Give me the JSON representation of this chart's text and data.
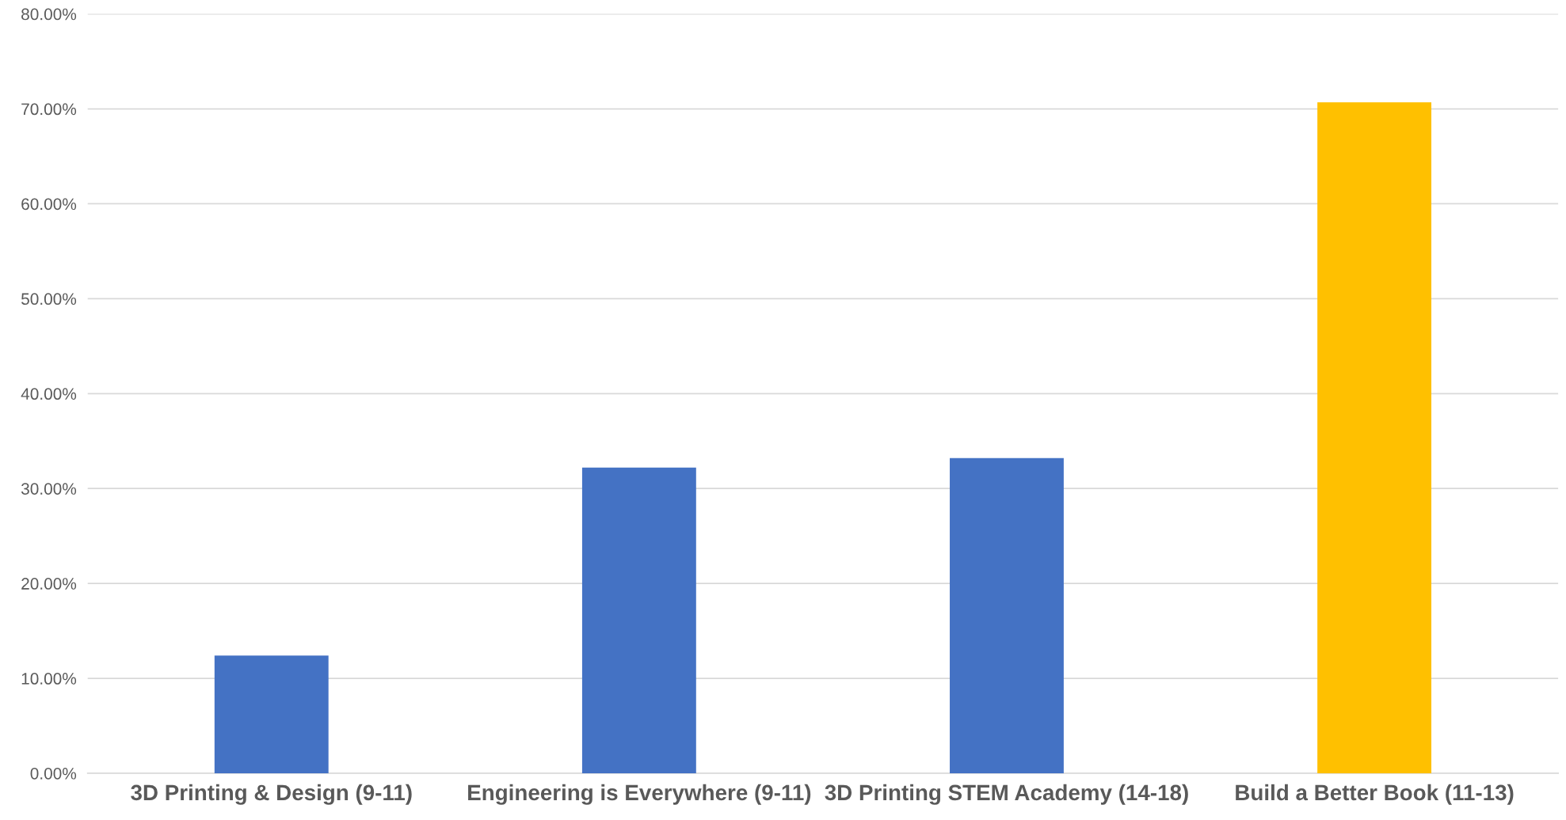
{
  "chart_data": {
    "type": "bar",
    "categories": [
      "3D Printing & Design (9-11)",
      "Engineering is Everywhere (9-11)",
      "3D Printing STEM Academy (14-18)",
      "Build a Better Book (11-13)"
    ],
    "values": [
      12.4,
      32.2,
      33.2,
      70.7
    ],
    "colors": [
      "#4472c4",
      "#4472c4",
      "#4472c4",
      "#ffc000"
    ],
    "ylim": [
      0,
      80
    ],
    "yticks": [
      {
        "value": 0,
        "label": "0.00%"
      },
      {
        "value": 10,
        "label": "10.00%"
      },
      {
        "value": 20,
        "label": "20.00%"
      },
      {
        "value": 30,
        "label": "30.00%"
      },
      {
        "value": 40,
        "label": "40.00%"
      },
      {
        "value": 50,
        "label": "50.00%"
      },
      {
        "value": 60,
        "label": "60.00%"
      },
      {
        "value": 70,
        "label": "70.00%"
      },
      {
        "value": 80,
        "label": "80.00%"
      }
    ],
    "grid": "y"
  }
}
